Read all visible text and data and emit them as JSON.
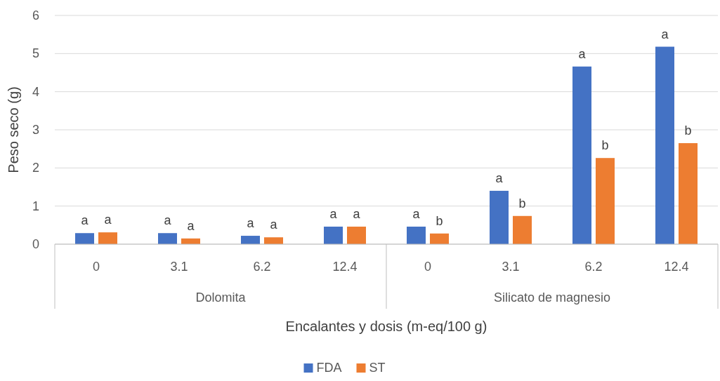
{
  "chart_data": {
    "type": "bar",
    "xlabel": "Encalantes y dosis (m-eq/100 g)",
    "ylabel": "Peso seco (g)",
    "categories": [
      "0",
      "3.1",
      "6.2",
      "12.4",
      "0",
      "3.1",
      "6.2",
      "12.4"
    ],
    "series": [
      {
        "name": "FDA",
        "color": "#4472c4",
        "values": [
          0.29,
          0.29,
          0.22,
          0.46,
          0.46,
          1.4,
          4.66,
          5.18
        ],
        "value_labels": [
          "a",
          "a",
          "a",
          "a",
          "a",
          "a",
          "a",
          "a"
        ]
      },
      {
        "name": "ST",
        "color": "#ed7d31",
        "values": [
          0.31,
          0.15,
          0.18,
          0.46,
          0.28,
          0.74,
          2.26,
          2.65
        ],
        "value_labels": [
          "a",
          "a",
          "a",
          "a",
          "b",
          "b",
          "b",
          "b"
        ]
      }
    ],
    "annotations": [
      "Dolomita",
      "Silicato de magnesio"
    ],
    "ylim": [
      0,
      6
    ],
    "yticks": [
      0,
      1,
      2,
      3,
      4,
      5,
      6
    ],
    "grid": "y",
    "legend": "bottom"
  }
}
